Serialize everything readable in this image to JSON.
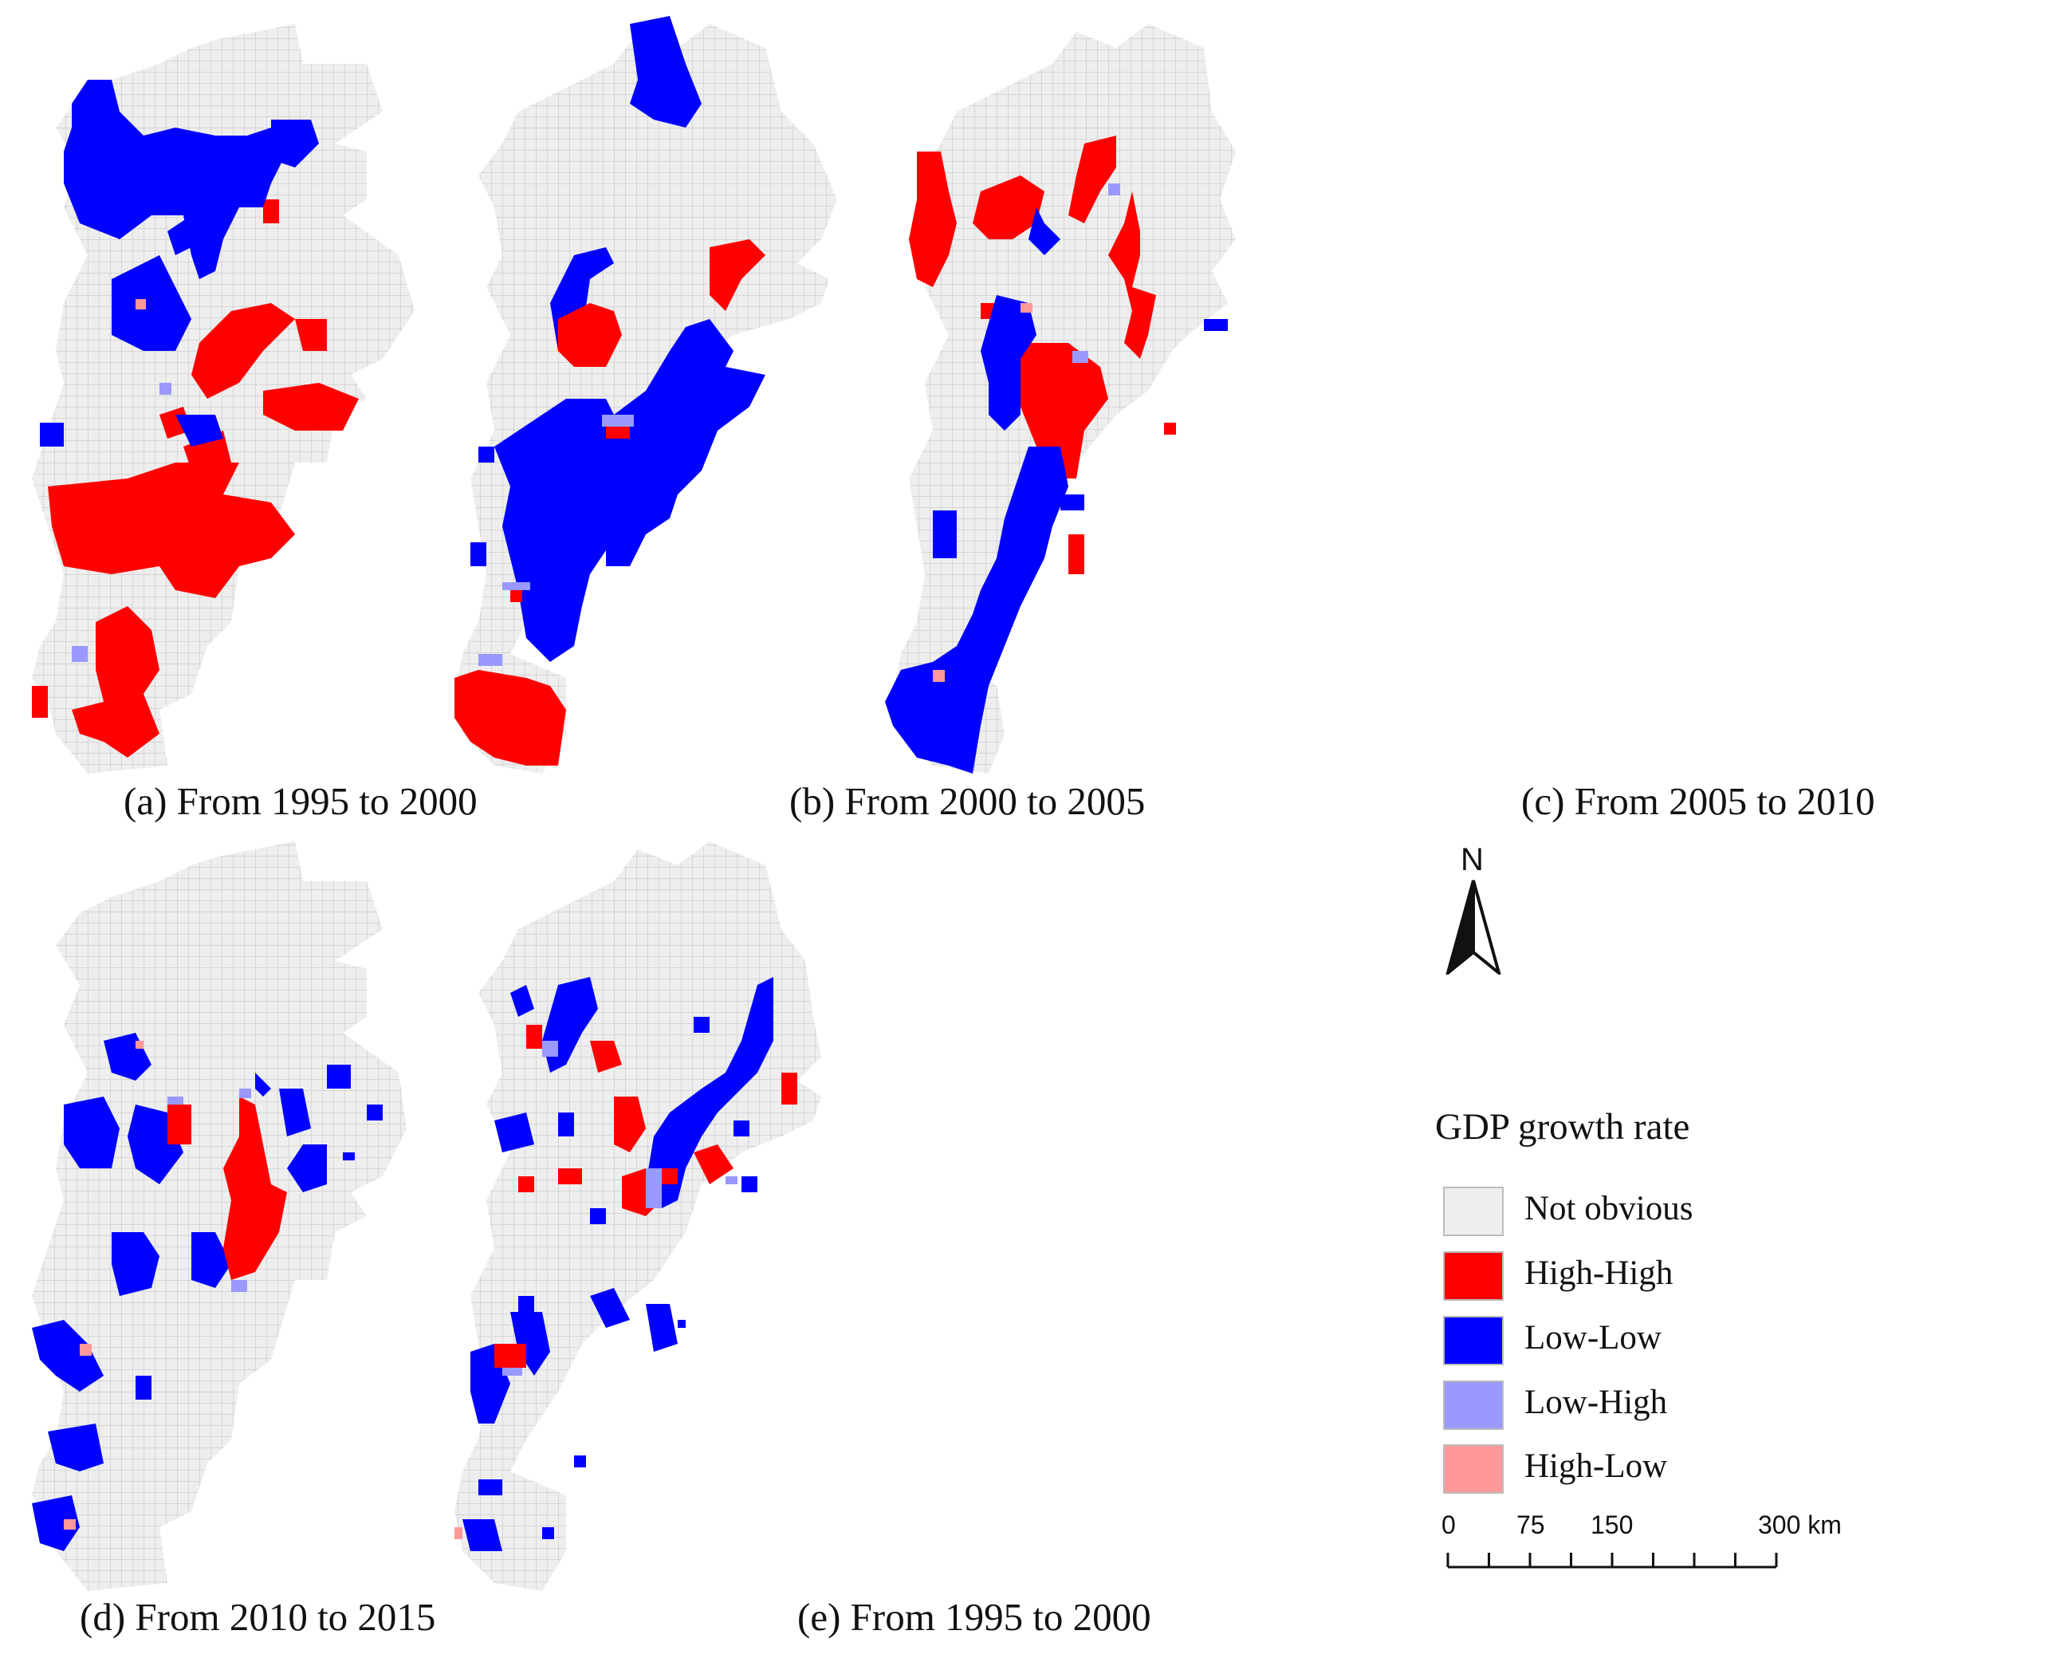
{
  "figure": {
    "panels": [
      {
        "id": "a",
        "caption": "(a) From 1995 to 2000"
      },
      {
        "id": "b",
        "caption": "(b) From 2000 to 2005"
      },
      {
        "id": "c",
        "caption": "(c) From 2005 to 2010"
      },
      {
        "id": "d",
        "caption": "(d) From 2010 to 2015"
      },
      {
        "id": "e",
        "caption": "(e) From 1995 to 2000"
      }
    ]
  },
  "legend": {
    "title": "GDP growth rate",
    "items": [
      {
        "label": "Not obvious",
        "color": "#eeeeee"
      },
      {
        "label": "High-High",
        "color": "#ff0000"
      },
      {
        "label": "Low-Low",
        "color": "#0000ff"
      },
      {
        "label": "Low-High",
        "color": "#9999ff"
      },
      {
        "label": "High-Low",
        "color": "#ff9999"
      }
    ]
  },
  "north_arrow": {
    "letter": "N"
  },
  "scale_bar": {
    "labels": [
      "0",
      "75",
      "150",
      "300 km"
    ],
    "ticks_km": [
      0,
      37.5,
      75,
      112.5,
      150,
      187.5,
      225,
      262.5,
      300
    ]
  },
  "colors": {
    "not_obvious": "#eeeeee",
    "grid_line": "#c8c8c8",
    "high_high": "#ff0000",
    "low_low": "#0000ff",
    "low_high": "#9999ff",
    "high_low": "#ff9999"
  },
  "icons": {
    "north": "north-arrow-icon"
  }
}
